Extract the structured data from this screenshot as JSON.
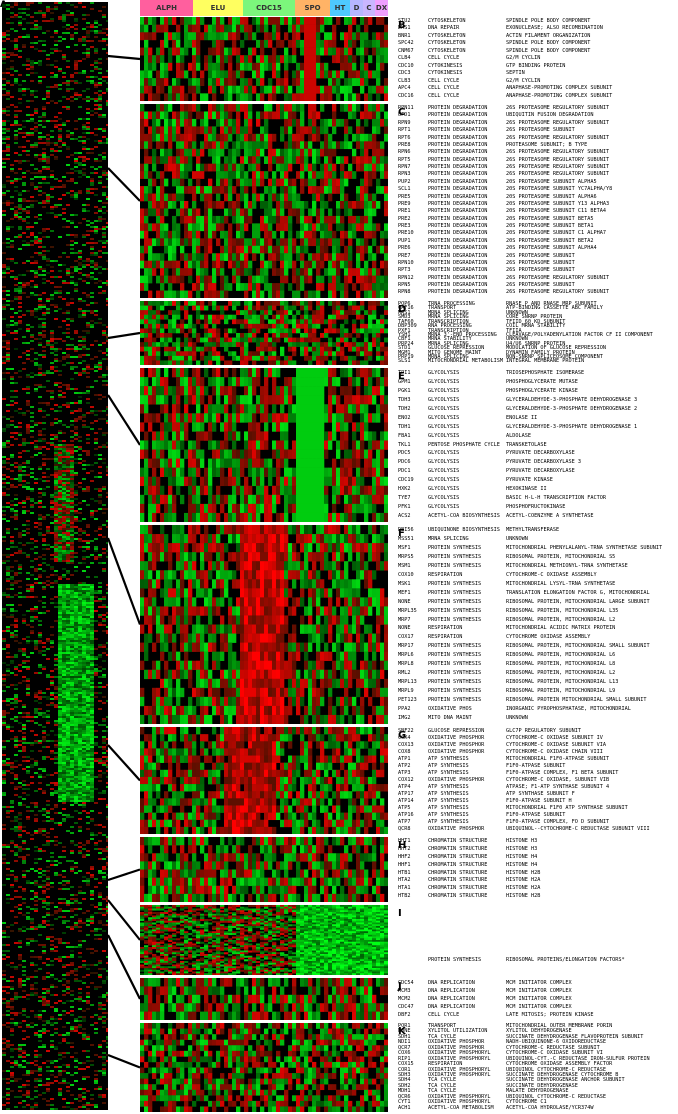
{
  "figure": {
    "overview_label": "A",
    "header": [
      {
        "label": "ALPH",
        "color": "#ff5f9e",
        "w": 53
      },
      {
        "label": "ELU",
        "color": "#ffff60",
        "w": 50
      },
      {
        "label": "CDC15",
        "color": "#7cf67c",
        "w": 52
      },
      {
        "label": "SPO",
        "color": "#ffb366",
        "w": 35
      },
      {
        "label": "HT",
        "color": "#4ec9ff",
        "w": 20
      },
      {
        "label": "D",
        "color": "#b6b6ff",
        "w": 13
      },
      {
        "label": "C",
        "color": "#c9b6ff",
        "w": 12
      },
      {
        "label": "DX",
        "color": "#f0a0ff",
        "w": 13
      }
    ],
    "colors": {
      "up": "#ff2020",
      "down": "#22ff22",
      "zero": "#000000"
    },
    "panels": [
      {
        "id": "B",
        "genes": [
          [
            "STU2",
            "CYTOSKELETON",
            "SPINDLE POLE BODY COMPONENT"
          ],
          [
            "DMS1",
            "DNA REPAIR",
            "EXONUCLEASE; ALSO RECOMBINATION"
          ],
          [
            "BNR1",
            "CYTOSKELETON",
            "ACTIN FILAMENT ORGANIZATION"
          ],
          [
            "SPC42",
            "CYTOSKELETON",
            "SPINDLE POLE BODY COMPONENT"
          ],
          [
            "CNM67",
            "CYTOSKELETON",
            "SPINDLE POLE BODY COMPONENT"
          ],
          [
            "CLB4",
            "CELL CYCLE",
            "G2/M CYCLIN"
          ],
          [
            "CDC10",
            "CYTOKINESIS",
            "GTP BINDING PROTEIN"
          ],
          [
            "CDC3",
            "CYTOKINESIS",
            "SEPTIN"
          ],
          [
            "CLB3",
            "CELL CYCLE",
            "G2/M CYCLIN"
          ],
          [
            "APC4",
            "CELL CYCLE",
            "ANAPHASE-PROMOTING COMPLEX SUBUNIT"
          ],
          [
            "CDC16",
            "CELL CYCLE",
            "ANAPHASE-PROMOTING COMPLEX SUBUNIT"
          ]
        ]
      },
      {
        "id": "C",
        "genes": [
          [
            "RPN11",
            "PROTEIN DEGRADATION",
            "26S PROTEASOME REGULATORY SUBUNIT"
          ],
          [
            "UFD1",
            "PROTEIN DEGRADATION",
            "UBIQUITIN FUSION DEGRADATION"
          ],
          [
            "RPN9",
            "PROTEIN DEGRADATION",
            "26S PROTEASOME REGULATORY SUBUNIT"
          ],
          [
            "RPT1",
            "PROTEIN DEGRADATION",
            "26S PROTEASOME SUBUNIT"
          ],
          [
            "RPT6",
            "PROTEIN DEGRADATION",
            "26S PROTEASOME REGULATORY SUBUNIT"
          ],
          [
            "PRE8",
            "PROTEIN DEGRADATION",
            "PROTEASOME SUBUNIT; B TYPE"
          ],
          [
            "RPN6",
            "PROTEIN DEGRADATION",
            "26S PROTEASOME REGULATORY SUBUNIT"
          ],
          [
            "RPT5",
            "PROTEIN DEGRADATION",
            "26S PROTEASOME REGULATORY SUBUNIT"
          ],
          [
            "RPN7",
            "PROTEIN DEGRADATION",
            "26S PROTEASOME REGULATORY SUBUNIT"
          ],
          [
            "RPN3",
            "PROTEIN DEGRADATION",
            "26S PROTEASOME REGULATORY SUBUNIT"
          ],
          [
            "PUP2",
            "PROTEIN DEGRADATION",
            "20S PROTEASOME SUBUNIT ALPHA5"
          ],
          [
            "SCL1",
            "PROTEIN DEGRADATION",
            "20S PROTEASOME SUBUNIT YC7ALPHA/Y8"
          ],
          [
            "PRE5",
            "PROTEIN DEGRADATION",
            "20S PROTEASOME SUBUNIT ALPHA6"
          ],
          [
            "PRE9",
            "PROTEIN DEGRADATION",
            "20S PROTEASOME SUBUNIT Y13 ALPHA3"
          ],
          [
            "PRE1",
            "PROTEIN DEGRADATION",
            "20S PROTEASOME SUBUNIT C11 BETA4"
          ],
          [
            "PRE2",
            "PROTEIN DEGRADATION",
            "20S PROTEASOME SUBUNIT BETA5"
          ],
          [
            "PRE3",
            "PROTEIN DEGRADATION",
            "20S PROTEASOME SUBUNIT BETA1"
          ],
          [
            "PRE10",
            "PROTEIN DEGRADATION",
            "20S PROTEASOME SUBUNIT C1 ALPHA7"
          ],
          [
            "PUP1",
            "PROTEIN DEGRADATION",
            "20S PROTEASOME SUBUNIT BETA2"
          ],
          [
            "PRE6",
            "PROTEIN DEGRADATION",
            "20S PROTEASOME SUBUNIT ALPHA4"
          ],
          [
            "PRE7",
            "PROTEIN DEGRADATION",
            "20S PROTEASOME SUBUNIT"
          ],
          [
            "RPN10",
            "PROTEIN DEGRADATION",
            "26S PROTEASOME SUBUNIT"
          ],
          [
            "RPT3",
            "PROTEIN DEGRADATION",
            "26S PROTEASOME SUBUNIT"
          ],
          [
            "RPN12",
            "PROTEIN DEGRADATION",
            "26S PROTEASOME REGULATORY SUBUNIT"
          ],
          [
            "RPN5",
            "PROTEIN DEGRADATION",
            "26S PROTEASOME SUBUNIT"
          ],
          [
            "RPN8",
            "PROTEIN DEGRADATION",
            "26S PROTEASOME REGULATORY SUBUNIT"
          ]
        ]
      },
      {
        "id": "D",
        "genes": [
          [
            "POP6",
            "TRNA PROCESSING",
            "RNASE P AND RNASE MRP SUBUNIT"
          ],
          [
            "CAF16",
            "TRANSPORT",
            "ATP-BINDING CASSETTE ABC FAMILY"
          ],
          [
            "MRS1",
            "MRNA SPLICING",
            "UNKNOWN"
          ],
          [
            "SMD3",
            "MRNA SPLICING",
            "CORE SNRNP PROTEIN"
          ],
          [
            "TAF60",
            "TRANSCRIPTION",
            "TFIID 60 KD SUBUNIT"
          ],
          [
            "DBP309",
            "RNA PROCESSING",
            "COIL MRNA STABILITY"
          ],
          [
            "PXF1",
            "TRANSCRIPTION",
            "TFIIA"
          ],
          [
            "YSH1",
            "MRNA 3'-END PROCESSING",
            "CLEAVAGE/POLYADENYLATION FACTOR CF II COMPONENT"
          ],
          [
            "CBF1",
            "MRNA STABILITY",
            "UNKNOWN"
          ],
          [
            "PRP24",
            "MRNA SPLICING",
            "U4/U6 SNRNP PROTEIN"
          ],
          [
            "STD1",
            "GLUCOSE REPRESSION",
            "MODULATION OF GLUCOSE REPRESSION"
          ],
          [
            "MGM1",
            "MITO GENOME MAINT",
            "DYNAMIN FAMILY PROTEIN"
          ],
          [
            "PRP19",
            "MRNA SPLICING",
            "NON-SNRNP SPLICEOSOME COMPONENT"
          ],
          [
            "SLS1",
            "MITOCHONDRIAL METABOLISM",
            "INTEGRAL MEMBRANE PROTEIN"
          ]
        ]
      },
      {
        "id": "E",
        "genes": [
          [
            "TPI1",
            "GLYCOLYSIS",
            "TRIOSEPHOSPHATE ISOMERASE"
          ],
          [
            "GPM1",
            "GLYCOLYSIS",
            "PHOSPHOGLYCERATE MUTASE"
          ],
          [
            "PGK1",
            "GLYCOLYSIS",
            "PHOSPHOGLYCERATE KINASE"
          ],
          [
            "TDH3",
            "GLYCOLYSIS",
            "GLYCERALDEHYDE-3-PHOSPHATE DEHYDROGENASE 3"
          ],
          [
            "TDH2",
            "GLYCOLYSIS",
            "GLYCERALDEHYDE-3-PHOSPHATE DEHYDROGENASE 2"
          ],
          [
            "ENO2",
            "GLYCOLYSIS",
            "ENOLASE II"
          ],
          [
            "TDH1",
            "GLYCOLYSIS",
            "GLYCERALDEHYDE-3-PHOSPHATE DEHYDROGENASE 1"
          ],
          [
            "FBA1",
            "GLYCOLYSIS",
            "ALDOLASE"
          ],
          [
            "TKL1",
            "PENTOSE PHOSPHATE CYCLE",
            "TRANSKETOLASE"
          ],
          [
            "PDC5",
            "GLYCOLYSIS",
            "PYRUVATE DECARBOXYLASE"
          ],
          [
            "PDC6",
            "GLYCOLYSIS",
            "PYRUVATE DECARBOXYLASE 3"
          ],
          [
            "PDC1",
            "GLYCOLYSIS",
            "PYRUVATE DECARBOXYLASE"
          ],
          [
            "CDC19",
            "GLYCOLYSIS",
            "PYRUVATE KINASE"
          ],
          [
            "HXK2",
            "GLYCOLYSIS",
            "HEXOKINASE II"
          ],
          [
            "TYE7",
            "GLYCOLYSIS",
            "BASIC H-L-H TRANSCRIPTION FACTOR"
          ],
          [
            "PFK1",
            "GLYCOLYSIS",
            "PHOSPHOFRUCTOKINASE"
          ],
          [
            "ACS2",
            "ACETYL-COA BIOSYNTHESIS",
            "ACETYL-COENZYME A SYNTHETASE"
          ]
        ]
      },
      {
        "id": "F",
        "genes": [
          [
            "DBI56",
            "UBIQUINONE BIOSYNTHESIS",
            "METHYLTRANSFERASE"
          ],
          [
            "MSS51",
            "MRNA SPLICING",
            "UNKNOWN"
          ],
          [
            "MSF1",
            "PROTEIN SYNTHESIS",
            "MITOCHONDRIAL PHENYLALANYL-TRNA SYNTHETASE SUBUNIT"
          ],
          [
            "MRPS5",
            "PROTEIN SYNTHESIS",
            "RIBOSOMAL PROTEIN, MITOCHONDRIAL S5"
          ],
          [
            "MSM1",
            "PROTEIN SYNTHESIS",
            "MITOCHONDRIAL METHIONYL-TRNA SYNTHETASE"
          ],
          [
            "COX10",
            "RESPIRATION",
            "CYTOCHROME-C OXIDASE ASSEMBLY"
          ],
          [
            "MSK1",
            "PROTEIN SYNTHESIS",
            "MITOCHONDRIAL LYSYL-TRNA SYNTHETASE"
          ],
          [
            "MEF1",
            "PROTEIN SYNTHESIS",
            "TRANSLATION ELONGATION FACTOR G, MITOCHONDRIAL"
          ],
          [
            "NONE",
            "PROTEIN SYNTHESIS",
            "RIBOSOMAL PROTEIN, MITOCHONDRIAL LARGE SUBUNIT"
          ],
          [
            "MRPL35",
            "PROTEIN SYNTHESIS",
            "RIBOSOMAL PROTEIN, MITOCHONDRIAL L35"
          ],
          [
            "MRP7",
            "PROTEIN SYNTHESIS",
            "RIBOSOMAL PROTEIN, MITOCHONDRIAL L2"
          ],
          [
            "NONE",
            "RESPIRATION",
            "MITOCHONDRIAL ACIDIC MATRIX PROTEIN"
          ],
          [
            "COX17",
            "RESPIRATION",
            "CYTOCHROME OXIDASE ASSEMBLY"
          ],
          [
            "MRP17",
            "PROTEIN SYNTHESIS",
            "RIBOSOMAL PROTEIN, MITOCHONDRIAL SMALL SUBUNIT"
          ],
          [
            "MRPL6",
            "PROTEIN SYNTHESIS",
            "RIBOSOMAL PROTEIN, MITOCHONDRIAL L6"
          ],
          [
            "MRPL8",
            "PROTEIN SYNTHESIS",
            "RIBOSOMAL PROTEIN, MITOCHONDRIAL L8"
          ],
          [
            "RML2",
            "PROTEIN SYNTHESIS",
            "RIBOSOMAL PROTEIN, MITOCHONDRIAL L2"
          ],
          [
            "MRPL13",
            "PROTEIN SYNTHESIS",
            "RIBOSOMAL PROTEIN, MITOCHONDRIAL L13"
          ],
          [
            "MRPL9",
            "PROTEIN SYNTHESIS",
            "RIBOSOMAL PROTEIN, MITOCHONDRIAL L9"
          ],
          [
            "PET123",
            "PROTEIN SYNTHESIS",
            "RIBOSOMAL PROTEIN MITOCHONDRIAL SMALL SUBUNIT"
          ],
          [
            "PPA2",
            "OXIDATIVE PHOS",
            "INORGANIC PYROPHOSPHATASE, MITOCHONDRIAL"
          ],
          [
            "IMG2",
            "MITO DNA MAINT",
            "UNKNOWN"
          ]
        ]
      },
      {
        "id": "G",
        "genes": [
          [
            "SNF22",
            "GLUCOSE REPRESSION",
            "GLC7P REGULATORY SUBUNIT"
          ],
          [
            "COX4",
            "OXIDATIVE PHOSPHOR",
            "CYTOCHROME-C OXIDASE SUBUNIT IV"
          ],
          [
            "COX13",
            "OXIDATIVE PHOSPHOR",
            "CYTOCHROME-C OXIDASE SUBUNIT VIA"
          ],
          [
            "COX8",
            "OXIDATIVE PHOSPHOR",
            "CYTOCHROME-C OXIDASE CHAIN VIII"
          ],
          [
            "ATP1",
            "ATP SYNTHESIS",
            "MITOCHONDRIAL F1F0-ATPASE SUBUNIT"
          ],
          [
            "ATP2",
            "ATP SYNTHESIS",
            "F1F0-ATPASE SUBUNIT"
          ],
          [
            "ATP3",
            "ATP SYNTHESIS",
            "F1F0-ATPASE COMPLEX, F1 BETA SUBUNIT"
          ],
          [
            "COX12",
            "OXIDATIVE PHOSPHOR",
            "CYTOCHROME-C OXIDASE, SUBUNIT VIB"
          ],
          [
            "ATP4",
            "ATP SYNTHESIS",
            "ATPASE; F1-ATP SYNTHASE SUBUNIT 4"
          ],
          [
            "ATP17",
            "ATP SYNTHESIS",
            "ATP SYNTHASE SUBUNIT F"
          ],
          [
            "ATP14",
            "ATP SYNTHESIS",
            "F1F0-ATPASE SUBUNIT H"
          ],
          [
            "ATP5",
            "ATP SYNTHESIS",
            "MITOCHONDRIAL F1F0 ATP SYNTHASE SUBUNIT"
          ],
          [
            "ATP16",
            "ATP SYNTHESIS",
            "F1F0-ATPASE SUBUNIT"
          ],
          [
            "ATP7",
            "ATP SYNTHESIS",
            "F1F0-ATPASE COMPLEX, FO D SUBUNIT"
          ],
          [
            "QCR8",
            "OXIDATIVE PHOSPHOR",
            "UBIQUINOL--CYTOCHROME-C REDUCTASE SUBUNIT VIII"
          ]
        ]
      },
      {
        "id": "H",
        "genes": [
          [
            "HHT1",
            "CHROMATIN STRUCTURE",
            "HISTONE H3"
          ],
          [
            "HHT2",
            "CHROMATIN STRUCTURE",
            "HISTONE H3"
          ],
          [
            "HHF2",
            "CHROMATIN STRUCTURE",
            "HISTONE H4"
          ],
          [
            "HHF1",
            "CHROMATIN STRUCTURE",
            "HISTONE H4"
          ],
          [
            "HTB1",
            "CHROMATIN STRUCTURE",
            "HISTONE H2B"
          ],
          [
            "HTA2",
            "CHROMATIN STRUCTURE",
            "HISTONE H2A"
          ],
          [
            "HTA1",
            "CHROMATIN STRUCTURE",
            "HISTONE H2A"
          ],
          [
            "HTB2",
            "CHROMATIN STRUCTURE",
            "HISTONE H2B"
          ]
        ]
      },
      {
        "id": "I",
        "genes": [
          [
            "",
            "PROTEIN SYNTHESIS",
            "RIBOSOMAL PROTEINS/ELONGATION FACTORS*"
          ]
        ]
      },
      {
        "id": "J",
        "genes": [
          [
            "CDC54",
            "DNA REPLICATION",
            "MCM INITIATOR COMPLEX"
          ],
          [
            "MCM3",
            "DNA REPLICATION",
            "MCM INITIATOR COMPLEX"
          ],
          [
            "MCM2",
            "DNA REPLICATION",
            "MCM INITIATOR COMPLEX"
          ],
          [
            "CDC47",
            "DNA REPLICATION",
            "MCM INITIATOR COMPLEX"
          ],
          [
            "DBF2",
            "CELL CYCLE",
            "LATE MITOSIS; PROTEIN KINASE"
          ]
        ]
      },
      {
        "id": "K",
        "genes": [
          [
            "POR1",
            "TRANSPORT",
            "MITOCHONDRIAL OUTER MEMBRANE PORIN"
          ],
          [
            "NONE",
            "XYLITOL UTILIZATION",
            "XYLITOL DEHYDROGENASE"
          ],
          [
            "SDH1",
            "TCA CYCLE",
            "SUCCINATE DEHYDROGENASE FLAVOPROTEIN SUBUNIT"
          ],
          [
            "NDI1",
            "OXIDATIVE PHOSPHOR",
            "NADH-UBIQUINONE-6 OXIDOREDUCTASE"
          ],
          [
            "QCR7",
            "OXIDATIVE PHOSPHOR",
            "CYTOCHROME-C REDUCTASE SUBUNIT"
          ],
          [
            "COX6",
            "OXIDATIVE PHOSPHORYL",
            "CYTOCHROME-C OXIDASE SUBUNIT VI"
          ],
          [
            "RIP1",
            "OXIDATIVE PHOSPHORYL",
            "UBIQUINOL-CYT.-C REDUCTASE IRON-SULFUR PROTEIN"
          ],
          [
            "COX15",
            "RESPIRATION",
            "CYTOCHROME OXIDASE ASSEMBLY FACTOR"
          ],
          [
            "COR1",
            "OXIDATIVE PHOSPHORYL",
            "UBIQUINOL CYTOCHROME-C REDUCTASE"
          ],
          [
            "SDH3",
            "OXIDATIVE PHOSPHORYL",
            "SUCCINATE DEHYDROGENASE CYTOCHROME B"
          ],
          [
            "SDH4",
            "TCA CYCLE",
            "SUCCINATE DEHYDROGENASE ANCHOR SUBUNIT"
          ],
          [
            "SDH2",
            "TCA CYCLE",
            "SUCCINATE DEHYDROGENASE"
          ],
          [
            "MDH1",
            "TCA CYCLE",
            "MALATE DEHYDROGENASE"
          ],
          [
            "QCR6",
            "OXIDATIVE PHOSPHORYL",
            "UBIQUINOL CYTOCHROME-C REDUCTASE"
          ],
          [
            "CYT1",
            "OXIDATIVE PHOSPHORYL",
            "CYTOCHROME C1"
          ],
          [
            "ACH1",
            "ACETYL-COA METABOLISM",
            "ACETYL-COA HYDROLASE/YCR374W"
          ]
        ]
      }
    ]
  }
}
